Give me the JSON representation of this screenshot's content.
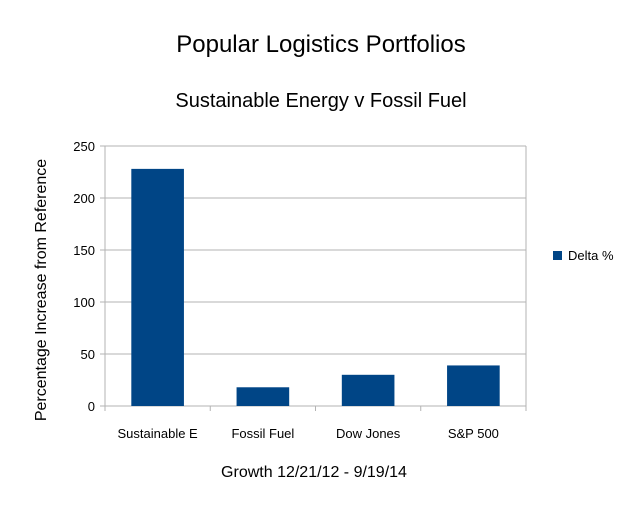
{
  "chart_data": {
    "type": "bar",
    "title": "Popular Logistics Portfolios",
    "subtitle": "Sustainable Energy v Fossil Fuel",
    "xlabel": "Growth 12/21/12 - 9/19/14",
    "ylabel": "Percentage Increase from Reference",
    "categories": [
      "Sustainable E",
      "Fossil Fuel",
      "Dow Jones",
      "S&P 500"
    ],
    "series": [
      {
        "name": "Delta %",
        "values": [
          228,
          18,
          30,
          39
        ]
      }
    ],
    "ylim": [
      0,
      250
    ],
    "yticks": [
      "0",
      "50",
      "100",
      "150",
      "200",
      "250"
    ],
    "grid": true,
    "legend_position": "right",
    "colors": {
      "bar": "#004586",
      "gridline": "#b3b3b3",
      "axis": "#b3b3b3"
    }
  }
}
